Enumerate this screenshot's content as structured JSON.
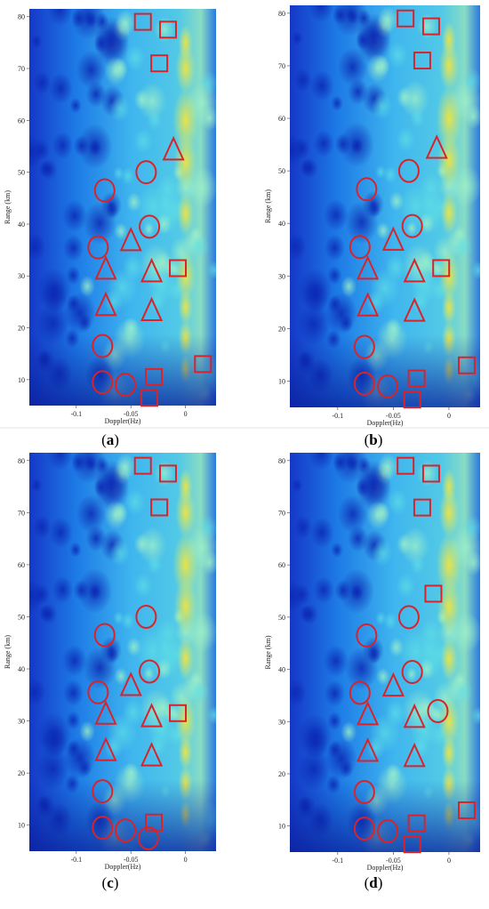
{
  "colors": {
    "marker": "#d9232a",
    "bg_dark": "#0a2aa8",
    "bg_mid": "#1e8fe8",
    "bg_light": "#8fe6d0",
    "hot": "#e8ef4a"
  },
  "chart_data": [
    {
      "type": "heatmap",
      "caption": "(a)",
      "xlabel": "Doppler(Hz)",
      "ylabel": "Range (km)",
      "xlim": [
        -0.143,
        0.028
      ],
      "ylim": [
        5,
        81.5
      ],
      "xticks": [
        -0.1,
        -0.05,
        0
      ],
      "yticks": [
        10,
        20,
        30,
        40,
        50,
        60,
        70,
        80
      ],
      "marker_color": "#d9232a",
      "markers": [
        {
          "shape": "square",
          "x": -0.039,
          "y": 79
        },
        {
          "shape": "square",
          "x": -0.016,
          "y": 77.5
        },
        {
          "shape": "square",
          "x": -0.024,
          "y": 71
        },
        {
          "shape": "triangle",
          "x": -0.011,
          "y": 54
        },
        {
          "shape": "circle",
          "x": -0.036,
          "y": 50
        },
        {
          "shape": "circle",
          "x": -0.074,
          "y": 46.5
        },
        {
          "shape": "circle",
          "x": -0.033,
          "y": 39.5
        },
        {
          "shape": "triangle",
          "x": -0.05,
          "y": 36.5
        },
        {
          "shape": "circle",
          "x": -0.08,
          "y": 35.5
        },
        {
          "shape": "triangle",
          "x": -0.073,
          "y": 31
        },
        {
          "shape": "triangle",
          "x": -0.031,
          "y": 30.5
        },
        {
          "shape": "square",
          "x": -0.007,
          "y": 31.5
        },
        {
          "shape": "triangle",
          "x": -0.073,
          "y": 24
        },
        {
          "shape": "triangle",
          "x": -0.031,
          "y": 23
        },
        {
          "shape": "circle",
          "x": -0.076,
          "y": 16.5
        },
        {
          "shape": "square",
          "x": 0.016,
          "y": 13
        },
        {
          "shape": "square",
          "x": -0.029,
          "y": 10.5
        },
        {
          "shape": "circle",
          "x": -0.076,
          "y": 9.5
        },
        {
          "shape": "circle",
          "x": -0.055,
          "y": 9
        },
        {
          "shape": "square",
          "x": -0.033,
          "y": 6.5
        }
      ]
    },
    {
      "type": "heatmap",
      "caption": "(b)",
      "xlabel": "Doppler(Hz)",
      "ylabel": "Range (km)",
      "xlim": [
        -0.143,
        0.028
      ],
      "ylim": [
        5,
        81.5
      ],
      "xticks": [
        -0.1,
        -0.05,
        0
      ],
      "yticks": [
        10,
        20,
        30,
        40,
        50,
        60,
        70,
        80
      ],
      "marker_color": "#d9232a",
      "markers": [
        {
          "shape": "square",
          "x": -0.039,
          "y": 79
        },
        {
          "shape": "square",
          "x": -0.016,
          "y": 77.5
        },
        {
          "shape": "square",
          "x": -0.024,
          "y": 71
        },
        {
          "shape": "triangle",
          "x": -0.011,
          "y": 54
        },
        {
          "shape": "circle",
          "x": -0.036,
          "y": 50
        },
        {
          "shape": "circle",
          "x": -0.074,
          "y": 46.5
        },
        {
          "shape": "circle",
          "x": -0.033,
          "y": 39.5
        },
        {
          "shape": "triangle",
          "x": -0.05,
          "y": 36.5
        },
        {
          "shape": "circle",
          "x": -0.08,
          "y": 35.5
        },
        {
          "shape": "triangle",
          "x": -0.073,
          "y": 31
        },
        {
          "shape": "triangle",
          "x": -0.031,
          "y": 30.5
        },
        {
          "shape": "square",
          "x": -0.007,
          "y": 31.5
        },
        {
          "shape": "triangle",
          "x": -0.073,
          "y": 24
        },
        {
          "shape": "triangle",
          "x": -0.031,
          "y": 23
        },
        {
          "shape": "circle",
          "x": -0.076,
          "y": 16.5
        },
        {
          "shape": "square",
          "x": 0.016,
          "y": 13
        },
        {
          "shape": "square",
          "x": -0.029,
          "y": 10.5
        },
        {
          "shape": "circle",
          "x": -0.076,
          "y": 9.5
        },
        {
          "shape": "circle",
          "x": -0.055,
          "y": 9
        },
        {
          "shape": "square",
          "x": -0.033,
          "y": 6.5
        }
      ]
    },
    {
      "type": "heatmap",
      "caption": "(c)",
      "xlabel": "Doppler(Hz)",
      "ylabel": "Range (km)",
      "xlim": [
        -0.143,
        0.028
      ],
      "ylim": [
        5,
        81.5
      ],
      "xticks": [
        -0.1,
        -0.05,
        0
      ],
      "yticks": [
        10,
        20,
        30,
        40,
        50,
        60,
        70,
        80
      ],
      "marker_color": "#d9232a",
      "markers": [
        {
          "shape": "square",
          "x": -0.039,
          "y": 79
        },
        {
          "shape": "square",
          "x": -0.016,
          "y": 77.5
        },
        {
          "shape": "square",
          "x": -0.024,
          "y": 71
        },
        {
          "shape": "circle",
          "x": -0.036,
          "y": 50
        },
        {
          "shape": "circle",
          "x": -0.074,
          "y": 46.5
        },
        {
          "shape": "circle",
          "x": -0.033,
          "y": 39.5
        },
        {
          "shape": "triangle",
          "x": -0.05,
          "y": 36.5
        },
        {
          "shape": "circle",
          "x": -0.08,
          "y": 35.5
        },
        {
          "shape": "triangle",
          "x": -0.073,
          "y": 31
        },
        {
          "shape": "triangle",
          "x": -0.031,
          "y": 30.5
        },
        {
          "shape": "square",
          "x": -0.007,
          "y": 31.5
        },
        {
          "shape": "triangle",
          "x": -0.073,
          "y": 24
        },
        {
          "shape": "triangle",
          "x": -0.031,
          "y": 23
        },
        {
          "shape": "circle",
          "x": -0.076,
          "y": 16.5
        },
        {
          "shape": "square",
          "x": -0.029,
          "y": 10.5
        },
        {
          "shape": "circle",
          "x": -0.076,
          "y": 9.5
        },
        {
          "shape": "circle",
          "x": -0.055,
          "y": 9
        },
        {
          "shape": "circle",
          "x": -0.034,
          "y": 7.5
        }
      ]
    },
    {
      "type": "heatmap",
      "caption": "(d)",
      "xlabel": "Doppler(Hz)",
      "ylabel": "Range (km)",
      "xlim": [
        -0.143,
        0.028
      ],
      "ylim": [
        5,
        81.5
      ],
      "xticks": [
        -0.1,
        -0.05,
        0
      ],
      "yticks": [
        10,
        20,
        30,
        40,
        50,
        60,
        70,
        80
      ],
      "marker_color": "#d9232a",
      "markers": [
        {
          "shape": "square",
          "x": -0.039,
          "y": 79
        },
        {
          "shape": "square",
          "x": -0.016,
          "y": 77.5
        },
        {
          "shape": "square",
          "x": -0.024,
          "y": 71
        },
        {
          "shape": "square",
          "x": -0.014,
          "y": 54.5
        },
        {
          "shape": "circle",
          "x": -0.036,
          "y": 50
        },
        {
          "shape": "circle",
          "x": -0.074,
          "y": 46.5
        },
        {
          "shape": "circle",
          "x": -0.033,
          "y": 39.5
        },
        {
          "shape": "triangle",
          "x": -0.05,
          "y": 36.5
        },
        {
          "shape": "circle",
          "x": -0.08,
          "y": 35.5
        },
        {
          "shape": "triangle",
          "x": -0.073,
          "y": 31
        },
        {
          "shape": "triangle",
          "x": -0.031,
          "y": 30.5
        },
        {
          "shape": "circle",
          "x": -0.01,
          "y": 32
        },
        {
          "shape": "triangle",
          "x": -0.073,
          "y": 24
        },
        {
          "shape": "triangle",
          "x": -0.031,
          "y": 23
        },
        {
          "shape": "circle",
          "x": -0.076,
          "y": 16.5
        },
        {
          "shape": "square",
          "x": 0.016,
          "y": 13
        },
        {
          "shape": "square",
          "x": -0.029,
          "y": 10.5
        },
        {
          "shape": "circle",
          "x": -0.076,
          "y": 9.5
        },
        {
          "shape": "circle",
          "x": -0.055,
          "y": 9
        },
        {
          "shape": "square",
          "x": -0.033,
          "y": 6.5
        }
      ]
    }
  ]
}
